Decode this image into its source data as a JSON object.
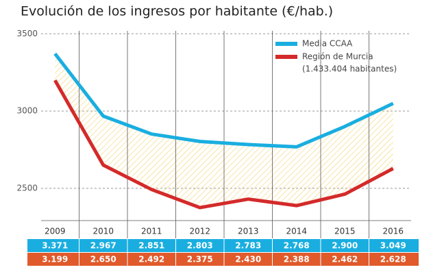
{
  "chart_data": {
    "type": "line",
    "title": "Evolución de los ingresos por habitante (€/hab.)",
    "categories": [
      "2009",
      "2010",
      "2011",
      "2012",
      "2013",
      "2014",
      "2015",
      "2016"
    ],
    "series": [
      {
        "name": "Media CCAA",
        "color": "#1aaee0",
        "values": [
          3371,
          2967,
          2851,
          2803,
          2783,
          2768,
          2900,
          3049
        ],
        "value_labels": [
          "3.371",
          "2.967",
          "2.851",
          "2.803",
          "2.783",
          "2.768",
          "2.900",
          "3.049"
        ]
      },
      {
        "name": "Región de Murcia",
        "color": "#d42a2a",
        "row_color": "#e05a2b",
        "values": [
          3199,
          2650,
          2492,
          2375,
          2430,
          2388,
          2462,
          2628
        ],
        "value_labels": [
          "3.199",
          "2.650",
          "2.492",
          "2.375",
          "2.430",
          "2.388",
          "2.462",
          "2.628"
        ]
      }
    ],
    "legend_note": "(1.433.404 habitantes)",
    "ylim": [
      2300,
      3550
    ],
    "yticks": [
      2500,
      3000,
      3500
    ],
    "grid": true,
    "fill_between_color": "#f2d36b"
  }
}
